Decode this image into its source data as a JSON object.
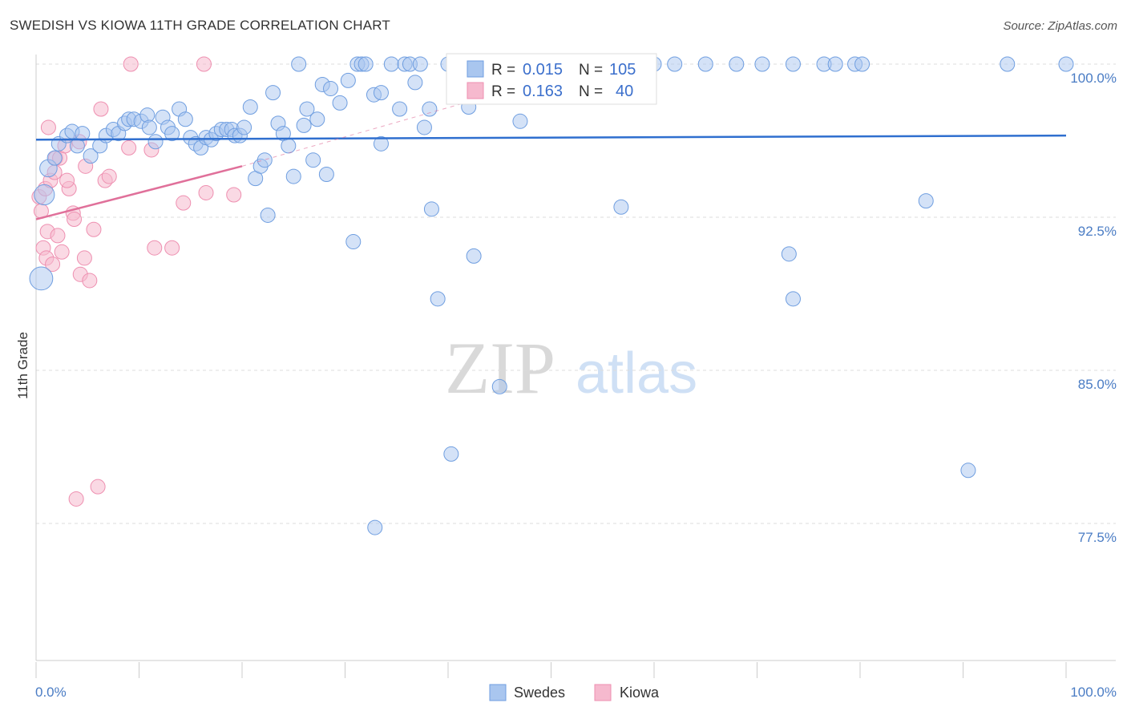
{
  "title": "SWEDISH VS KIOWA 11TH GRADE CORRELATION CHART",
  "source": "Source: ZipAtlas.com",
  "watermark": {
    "zip": "ZIP",
    "atlas": "atlas"
  },
  "legend_box": {
    "rows": [
      {
        "r_label": "R =",
        "r_value": "0.015",
        "n_label": "N =",
        "n_value": "105",
        "color": "#a9c6ef"
      },
      {
        "r_label": "R =",
        "r_value": "0.163",
        "n_label": "N =",
        "n_value": "40",
        "color": "#f6b9ce"
      }
    ]
  },
  "bottom_legend": {
    "swedes": "Swedes",
    "kiowa": "Kiowa"
  },
  "chart_data": {
    "type": "scatter",
    "title": "SWEDISH VS KIOWA 11TH GRADE CORRELATION CHART",
    "xlabel": "",
    "ylabel": "11th Grade",
    "xlim": [
      0,
      100
    ],
    "ylim": [
      70.0,
      101.0
    ],
    "x_tick_labels": [
      "0.0%",
      "100.0%"
    ],
    "y_ticks": [
      100.0,
      92.5,
      85.0,
      77.5
    ],
    "y_tick_labels": [
      "100.0%",
      "92.5%",
      "85.0%",
      "77.5%"
    ],
    "grid": "horizontal dashed",
    "colors": {
      "swedes": "#6f9ee0",
      "swedes_fill": "#a9c6ef",
      "kiowa": "#ee8fb0",
      "kiowa_fill": "#f6b9ce",
      "swedes_line": "#2f6fcf",
      "kiowa_line": "#e0709a"
    },
    "series": [
      {
        "name": "Swedes",
        "trend": {
          "x": [
            0,
            100
          ],
          "y": [
            96.3,
            96.5
          ]
        },
        "points": [
          [
            0.5,
            89.5,
            16
          ],
          [
            0.8,
            93.6,
            14
          ],
          [
            1.2,
            94.9,
            12
          ],
          [
            1.8,
            95.4,
            10
          ],
          [
            2.2,
            96.1,
            10
          ],
          [
            3.0,
            96.5,
            10
          ],
          [
            3.5,
            96.7,
            10
          ],
          [
            4.0,
            96.0,
            10
          ],
          [
            4.5,
            96.6,
            10
          ],
          [
            5.3,
            95.5,
            10
          ],
          [
            6.2,
            96.0,
            10
          ],
          [
            6.8,
            96.5,
            10
          ],
          [
            7.5,
            96.8,
            10
          ],
          [
            8.0,
            96.6,
            10
          ],
          [
            8.6,
            97.1,
            10
          ],
          [
            9.0,
            97.3,
            10
          ],
          [
            9.5,
            97.3,
            10
          ],
          [
            10.2,
            97.2,
            10
          ],
          [
            10.8,
            97.5,
            10
          ],
          [
            11.0,
            96.9,
            10
          ],
          [
            11.6,
            96.2,
            10
          ],
          [
            12.3,
            97.4,
            10
          ],
          [
            12.8,
            96.9,
            10
          ],
          [
            13.2,
            96.6,
            10
          ],
          [
            13.9,
            97.8,
            10
          ],
          [
            14.5,
            97.3,
            10
          ],
          [
            15.0,
            96.4,
            10
          ],
          [
            15.5,
            96.1,
            10
          ],
          [
            16.0,
            95.9,
            10
          ],
          [
            16.5,
            96.4,
            10
          ],
          [
            17.0,
            96.3,
            10
          ],
          [
            17.5,
            96.6,
            10
          ],
          [
            18.0,
            96.8,
            10
          ],
          [
            18.5,
            96.8,
            10
          ],
          [
            19.0,
            96.8,
            10
          ],
          [
            19.3,
            96.5,
            10
          ],
          [
            19.8,
            96.5,
            10
          ],
          [
            20.2,
            96.9,
            10
          ],
          [
            20.8,
            97.9,
            10
          ],
          [
            21.3,
            94.4,
            10
          ],
          [
            21.8,
            95.0,
            10
          ],
          [
            22.2,
            95.3,
            10
          ],
          [
            22.5,
            92.6,
            10
          ],
          [
            23.0,
            98.6,
            10
          ],
          [
            23.5,
            97.1,
            10
          ],
          [
            24.0,
            96.6,
            10
          ],
          [
            24.5,
            96.0,
            10
          ],
          [
            25.0,
            94.5,
            10
          ],
          [
            25.5,
            100.0,
            10
          ],
          [
            26.0,
            97.0,
            10
          ],
          [
            26.3,
            97.8,
            10
          ],
          [
            26.9,
            95.3,
            10
          ],
          [
            27.3,
            97.3,
            10
          ],
          [
            27.8,
            99.0,
            10
          ],
          [
            28.2,
            94.6,
            10
          ],
          [
            28.6,
            98.8,
            10
          ],
          [
            29.5,
            98.1,
            10
          ],
          [
            30.3,
            99.2,
            10
          ],
          [
            30.8,
            91.3,
            10
          ],
          [
            31.2,
            100.0,
            10
          ],
          [
            31.6,
            100.0,
            10
          ],
          [
            32.0,
            100.0,
            10
          ],
          [
            32.8,
            98.5,
            10
          ],
          [
            33.5,
            98.6,
            10
          ],
          [
            33.5,
            96.1,
            10
          ],
          [
            34.5,
            100.0,
            10
          ],
          [
            35.3,
            97.8,
            10
          ],
          [
            35.8,
            100.0,
            10
          ],
          [
            36.3,
            100.0,
            10
          ],
          [
            36.8,
            99.1,
            10
          ],
          [
            37.3,
            100.0,
            10
          ],
          [
            37.7,
            96.9,
            10
          ],
          [
            38.2,
            97.8,
            10
          ],
          [
            38.4,
            92.9,
            10
          ],
          [
            39.0,
            88.5,
            10
          ],
          [
            40.0,
            100.0,
            10
          ],
          [
            40.3,
            80.9,
            10
          ],
          [
            41.2,
            100.0,
            10
          ],
          [
            42.0,
            97.9,
            10
          ],
          [
            42.5,
            90.6,
            10
          ],
          [
            43.0,
            100.0,
            10
          ],
          [
            44.0,
            100.0,
            10
          ],
          [
            45.0,
            84.2,
            10
          ],
          [
            46.0,
            100.0,
            10
          ],
          [
            47.0,
            97.2,
            10
          ],
          [
            48.0,
            100.0,
            10
          ],
          [
            49.0,
            100.0,
            10
          ],
          [
            50.0,
            100.0,
            10
          ],
          [
            51.5,
            100.0,
            10
          ],
          [
            56.0,
            100.0,
            10
          ],
          [
            57.5,
            100.0,
            10
          ],
          [
            59.0,
            100.0,
            10
          ],
          [
            60.0,
            100.0,
            10
          ],
          [
            62.0,
            100.0,
            10
          ],
          [
            65.0,
            100.0,
            10
          ],
          [
            68.0,
            100.0,
            10
          ],
          [
            70.5,
            100.0,
            10
          ],
          [
            73.5,
            100.0,
            10
          ],
          [
            76.5,
            100.0,
            10
          ],
          [
            77.6,
            100.0,
            10
          ],
          [
            79.5,
            100.0,
            10
          ],
          [
            80.2,
            100.0,
            10
          ],
          [
            32.9,
            77.3,
            10
          ],
          [
            56.8,
            93.0,
            10
          ],
          [
            86.4,
            93.3,
            10
          ],
          [
            94.3,
            100.0,
            10
          ],
          [
            100.0,
            100.0,
            10
          ],
          [
            73.1,
            90.7,
            10
          ],
          [
            73.5,
            88.5,
            10
          ],
          [
            90.5,
            80.1,
            10
          ]
        ]
      },
      {
        "name": "Kiowa",
        "trend": {
          "x": [
            0,
            20
          ],
          "y": [
            92.4,
            95.0
          ]
        },
        "trend_dashed": {
          "x": [
            20,
            43
          ],
          "y": [
            95.0,
            98.3
          ]
        },
        "points": [
          [
            0.3,
            93.5,
            10
          ],
          [
            0.5,
            92.8,
            10
          ],
          [
            0.7,
            91.0,
            10
          ],
          [
            0.9,
            93.9,
            10
          ],
          [
            1.0,
            90.5,
            10
          ],
          [
            1.1,
            91.8,
            10
          ],
          [
            1.2,
            96.9,
            10
          ],
          [
            1.4,
            94.3,
            10
          ],
          [
            1.6,
            90.2,
            10
          ],
          [
            1.8,
            94.7,
            10
          ],
          [
            1.9,
            95.4,
            10
          ],
          [
            2.1,
            91.6,
            10
          ],
          [
            2.3,
            95.4,
            10
          ],
          [
            2.5,
            90.8,
            10
          ],
          [
            2.8,
            96.0,
            10
          ],
          [
            3.2,
            93.9,
            10
          ],
          [
            3.6,
            92.7,
            10
          ],
          [
            3.7,
            92.4,
            10
          ],
          [
            3.9,
            78.7,
            10
          ],
          [
            4.3,
            89.7,
            10
          ],
          [
            4.7,
            90.5,
            10
          ],
          [
            4.8,
            95.0,
            10
          ],
          [
            5.2,
            89.4,
            10
          ],
          [
            5.6,
            91.9,
            10
          ],
          [
            6.0,
            79.3,
            10
          ],
          [
            6.3,
            97.8,
            10
          ],
          [
            6.7,
            94.3,
            10
          ],
          [
            7.1,
            94.5,
            10
          ],
          [
            9.0,
            95.9,
            10
          ],
          [
            9.2,
            100.0,
            10
          ],
          [
            11.2,
            95.8,
            10
          ],
          [
            11.5,
            91.0,
            10
          ],
          [
            13.2,
            91.0,
            10
          ],
          [
            14.3,
            93.2,
            10
          ],
          [
            16.3,
            100.0,
            10
          ],
          [
            16.5,
            93.7,
            10
          ],
          [
            19.2,
            93.6,
            10
          ],
          [
            43.1,
            98.5,
            10
          ],
          [
            3.0,
            94.3,
            10
          ],
          [
            4.2,
            96.2,
            10
          ]
        ]
      }
    ]
  }
}
